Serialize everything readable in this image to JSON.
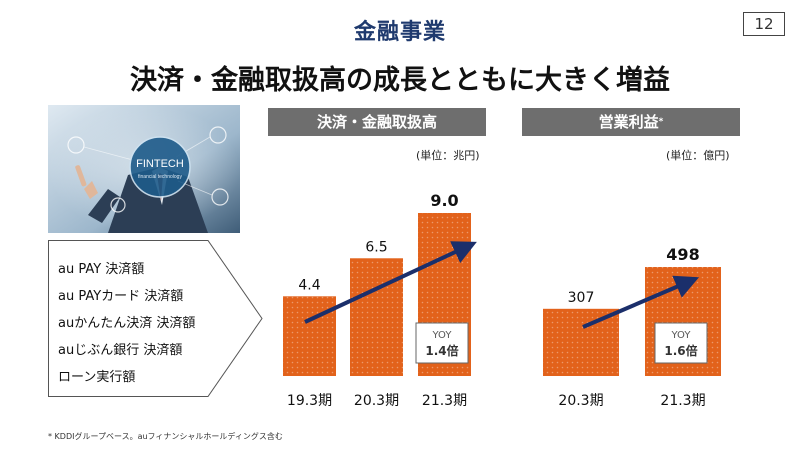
{
  "header": {
    "section_title": "金融事業",
    "page_number": "12",
    "headline": "決済・金融取扱高の成長とともに大きく増益"
  },
  "photo": {
    "badge_title": "FINTECH",
    "badge_subtitle": "financial technology"
  },
  "features": [
    "au PAY 決済額",
    "au PAYカード 決済額",
    "auかんたん決済 決済額",
    "auじぶん銀行 決済額",
    "ローン実行額"
  ],
  "footnote": "* KDDIグループベース。auフィナンシャルホールディングス含む",
  "chart_data": [
    {
      "type": "bar",
      "title": "決済・金融取扱高",
      "unit": "(単位：兆円)",
      "categories": [
        "19.3期",
        "20.3期",
        "21.3期"
      ],
      "values": [
        4.4,
        6.5,
        9.0
      ],
      "value_labels": [
        "4.4",
        "6.5",
        "9.0"
      ],
      "yoy_label": "YOY",
      "yoy_value": "1.4倍",
      "bar_color": "#e2621b"
    },
    {
      "type": "bar",
      "title": "営業利益",
      "title_mark": "*",
      "unit": "(単位：億円)",
      "categories": [
        "20.3期",
        "21.3期"
      ],
      "values": [
        307,
        498
      ],
      "value_labels": [
        "307",
        "498"
      ],
      "yoy_label": "YOY",
      "yoy_value": "1.6倍",
      "bar_color": "#e2621b"
    }
  ]
}
